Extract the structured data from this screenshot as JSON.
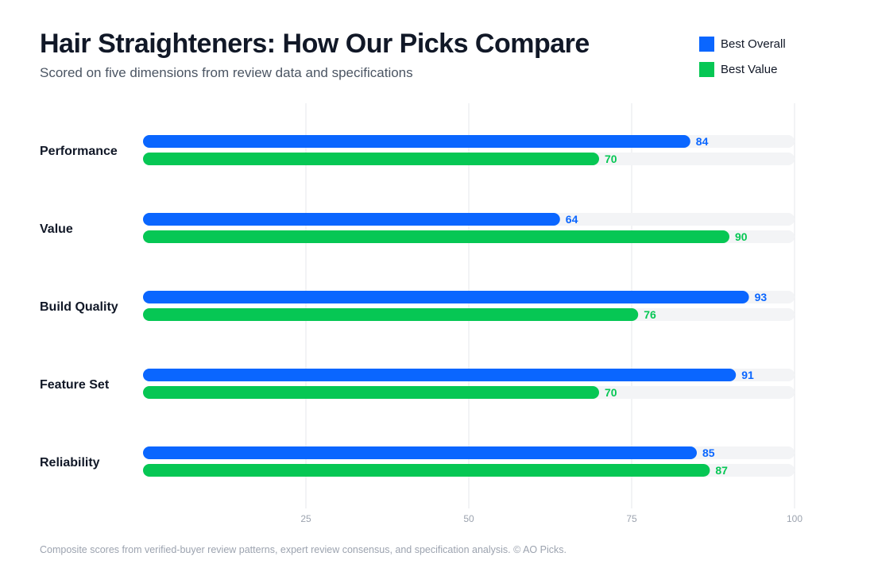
{
  "header": {
    "title": "Hair Straighteners: How Our Picks Compare",
    "subtitle": "Scored on five dimensions from review data and specifications"
  },
  "footer": {
    "note": "Composite scores from verified-buyer review patterns, expert review consensus, and specification analysis. © AO Picks."
  },
  "colors": {
    "best_overall": "#0a66ff",
    "best_value": "#06c754",
    "track": "#f3f4f6",
    "grid": "#e5e7eb",
    "tick": "#9ca3af",
    "category": "#111827"
  },
  "chart_data": {
    "type": "bar",
    "orientation": "horizontal",
    "categories": [
      "Performance",
      "Value",
      "Build Quality",
      "Feature Set",
      "Reliability"
    ],
    "series": [
      {
        "name": "Best Overall",
        "values": [
          84,
          64,
          93,
          91,
          85
        ]
      },
      {
        "name": "Best Value",
        "values": [
          70,
          90,
          76,
          70,
          87
        ]
      }
    ],
    "xlim": [
      0,
      100
    ],
    "xticks": [
      25,
      50,
      75,
      100
    ],
    "grid": true,
    "data_labels": true,
    "legend": "top-right"
  }
}
